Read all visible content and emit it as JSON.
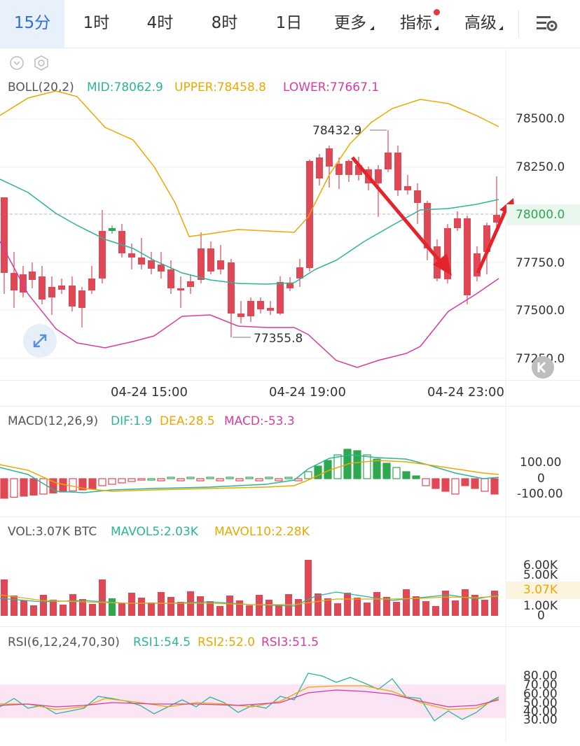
{
  "tabs": [
    {
      "label": "15分",
      "active": true
    },
    {
      "label": "1时"
    },
    {
      "label": "4时"
    },
    {
      "label": "8时"
    },
    {
      "label": "1日"
    },
    {
      "label": "更多"
    },
    {
      "label": "指标"
    },
    {
      "label": "高级"
    }
  ],
  "boll": {
    "name": "BOLL(20,2)",
    "mid": "MID:78062.9",
    "upper": "UPPER:78458.8",
    "lower": "LOWER:77667.1"
  },
  "price_axis": [
    "78500.0",
    "78250.0",
    "78000.0",
    "77750.0",
    "77500.0",
    "77250.0"
  ],
  "current_price": "78000.0",
  "high_mark": "78432.9",
  "low_mark": "77355.8",
  "time_axis": [
    "04-24 15:00",
    "04-24 19:00",
    "04-24 23:00"
  ],
  "macd": {
    "name": "MACD(12,26,9)",
    "dif": "DIF:1.9",
    "dea": "DEA:28.5",
    "macd": "MACD:-53.3",
    "axis": [
      "100.00",
      "0",
      "-100.00"
    ]
  },
  "vol": {
    "name": "VOL:3.07K BTC",
    "mavol5": "MAVOL5:2.03K",
    "mavol10": "MAVOL10:2.28K",
    "axis": [
      "6.00K",
      "5.00K",
      "3.07K",
      "1.00K",
      "0"
    ]
  },
  "rsi": {
    "name": "RSI(6,12,24,70,30)",
    "rsi1": "RSI1:54.5",
    "rsi2": "RSI2:52.0",
    "rsi3": "RSI3:51.5",
    "axis": [
      "80.00",
      "70.00",
      "60.00",
      "50.00",
      "40.00",
      "30.00"
    ]
  },
  "colors": {
    "up": "#2ea84f",
    "down": "#e04856",
    "mid": "#2ab59a",
    "upper": "#e8a900",
    "lower": "#d63ca0",
    "accent": "#2f6fd0"
  },
  "icons": [
    "settings-icon",
    "collapse-icon",
    "gear-icon",
    "expand-icon",
    "back-icon"
  ]
}
